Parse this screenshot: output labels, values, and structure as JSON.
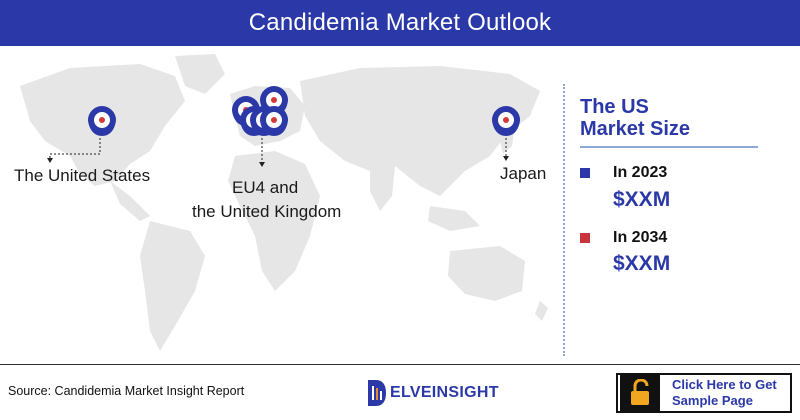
{
  "header": {
    "title": "Candidemia Market Outlook"
  },
  "map": {
    "labels": {
      "us": "The United States",
      "eu_line1": "EU4 and",
      "eu_line2": "the United Kingdom",
      "japan": "Japan"
    },
    "pin_color": "#2b39a8",
    "pin_dot_color": "#d43a3a",
    "land_color": "#e6e6e6"
  },
  "panel": {
    "title_line1": "The US",
    "title_line2": "Market Size",
    "rows": [
      {
        "year": "In 2023",
        "value": "$XXM",
        "color": "#2b39a8"
      },
      {
        "year": "In 2034",
        "value": "$XXM",
        "color": "#c8353c"
      }
    ]
  },
  "footer": {
    "source": "Source: Candidemia Market Insight Report",
    "logo_text": "ELVEINSIGHT",
    "cta_line1": "Click Here to Get",
    "cta_line2": "Sample Page",
    "cta_icon": "padlock-icon"
  }
}
